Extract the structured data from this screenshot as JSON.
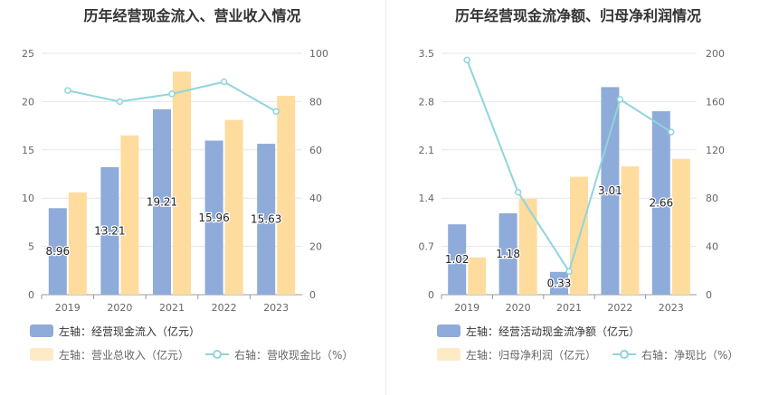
{
  "chart_data": [
    {
      "type": "bar+line",
      "title": "历年经营现金流入、营业收入情况",
      "categories": [
        "2019",
        "2020",
        "2021",
        "2022",
        "2023"
      ],
      "left_axis": {
        "min": 0,
        "max": 25,
        "ticks": [
          "0",
          "5",
          "10",
          "15",
          "20",
          "25"
        ]
      },
      "right_axis": {
        "min": 0,
        "max": 100,
        "ticks": [
          "0",
          "20",
          "40",
          "60",
          "80",
          "100"
        ]
      },
      "series": [
        {
          "name": "左轴：经营现金流入（亿元）",
          "type": "bar",
          "axis": "left",
          "color": "#8eabd9",
          "values": [
            8.96,
            13.21,
            19.21,
            15.96,
            15.63
          ],
          "labels": [
            "8.96",
            "13.21",
            "19.21",
            "15.96",
            "15.63"
          ]
        },
        {
          "name": "左轴：营业总收入（亿元）",
          "type": "bar",
          "axis": "left",
          "color": "#fedc9e",
          "values": [
            10.6,
            16.5,
            23.1,
            18.1,
            20.6
          ]
        },
        {
          "name": "右轴：营收现金比（%）",
          "type": "line",
          "axis": "right",
          "color": "#8fd5dc",
          "values": [
            84.6,
            80.0,
            83.2,
            88.2,
            75.9
          ]
        }
      ]
    },
    {
      "type": "bar+line",
      "title": "历年经营现金流净额、归母净利润情况",
      "categories": [
        "2019",
        "2020",
        "2021",
        "2022",
        "2023"
      ],
      "left_axis": {
        "min": 0,
        "max": 3.5,
        "ticks": [
          "0",
          "0.7",
          "1.4",
          "2.1",
          "2.8",
          "3.5"
        ]
      },
      "right_axis": {
        "min": 0,
        "max": 200,
        "ticks": [
          "0",
          "40",
          "80",
          "120",
          "160",
          "200"
        ]
      },
      "series": [
        {
          "name": "左轴：经营活动现金流净额（亿元）",
          "type": "bar",
          "axis": "left",
          "color": "#8eabd9",
          "values": [
            1.02,
            1.18,
            0.33,
            3.01,
            2.66
          ],
          "labels": [
            "1.02",
            "1.18",
            "0.33",
            "3.01",
            "2.66"
          ]
        },
        {
          "name": "左轴：归母净利润（亿元）",
          "type": "bar",
          "axis": "left",
          "color": "#fedc9e",
          "values": [
            0.54,
            1.39,
            1.71,
            1.86,
            1.97
          ]
        },
        {
          "name": "右轴：净现比（%）",
          "type": "line",
          "axis": "right",
          "color": "#8fd5dc",
          "values": [
            194.5,
            84.9,
            19.3,
            161.8,
            134.8
          ]
        }
      ]
    }
  ]
}
